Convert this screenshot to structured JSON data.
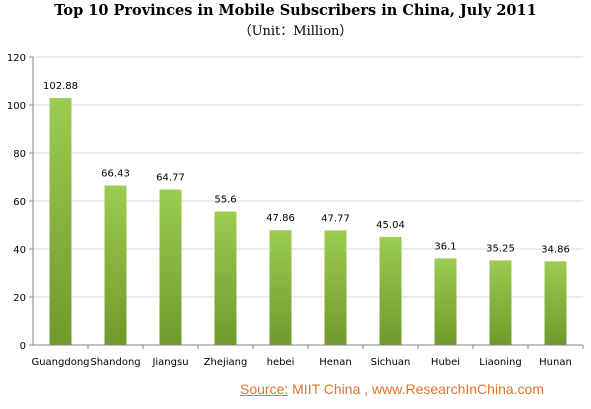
{
  "chart_data": {
    "type": "bar",
    "title": "Top 10 Provinces in Mobile Subscribers in China, July 2011",
    "subtitle": "（Unit：Million）",
    "categories": [
      "Guangdong",
      "Shandong",
      "Jiangsu",
      "Zhejiang",
      "hebei",
      "Henan",
      "Sichuan",
      "Hubei",
      "Liaoning",
      "Hunan"
    ],
    "values": [
      102.88,
      66.43,
      64.77,
      55.6,
      47.86,
      47.77,
      45.04,
      36.1,
      35.25,
      34.86
    ],
    "data_labels": [
      "102.88",
      "66.43",
      "64.77",
      "55.6",
      "47.86",
      "47.77",
      "45.04",
      "36.1",
      "35.25",
      "34.86"
    ],
    "xlabel": "",
    "ylabel": "",
    "ylim": [
      0,
      120
    ],
    "yticks": [
      0,
      20,
      40,
      60,
      80,
      100,
      120
    ],
    "grid": true,
    "legend": "none",
    "colors": {
      "bar_top": "#9ccc50",
      "bar_bottom": "#6f9a2c",
      "grid": "#d9d9d9",
      "axis": "#868686"
    }
  },
  "source": {
    "label": "Source:",
    "text": "  MIIT China , www.ResearchInChina.com"
  }
}
